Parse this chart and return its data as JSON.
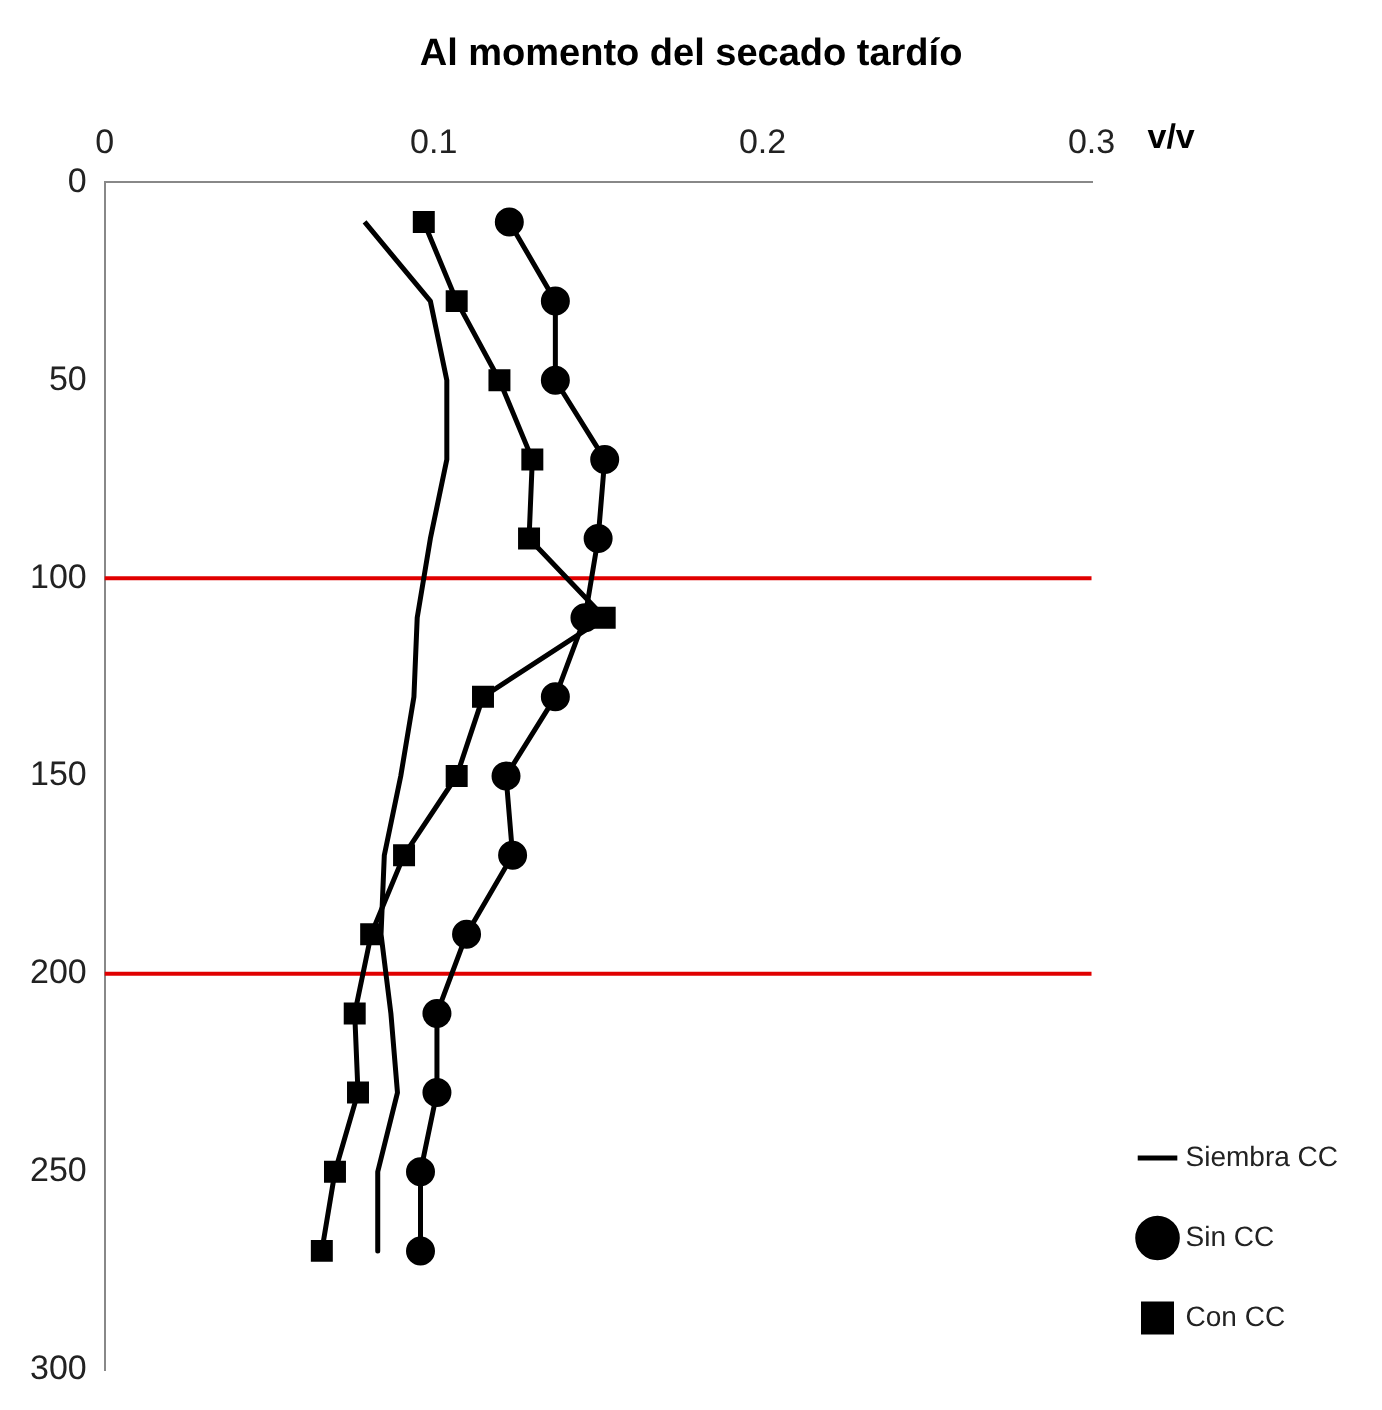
{
  "chart_data": {
    "type": "line",
    "title": "Al momento del secado tardío",
    "xlabel": "v/v",
    "xlim": [
      0,
      0.3
    ],
    "xticks": [
      0,
      0.1,
      0.2,
      0.3
    ],
    "ylim": [
      300,
      0
    ],
    "yticks": [
      0,
      50,
      100,
      150,
      200,
      250,
      300
    ],
    "grid": false,
    "legend": "bottom right",
    "line_style": "solid",
    "series": [
      {
        "name": "Siembra CC",
        "color": "#000000",
        "marker": "none",
        "x": [
          0.079,
          0.099,
          0.104,
          0.104,
          0.099,
          0.095,
          0.094,
          0.09,
          0.085,
          0.084,
          0.087,
          0.089,
          0.083,
          0.083
        ],
        "values": [
          10,
          30,
          50,
          70,
          90,
          110,
          130,
          150,
          170,
          190,
          210,
          230,
          250,
          270
        ]
      },
      {
        "name": "Sin CC",
        "color": "#000000",
        "marker": "circle",
        "x": [
          0.123,
          0.137,
          0.137,
          0.152,
          0.15,
          0.146,
          0.137,
          0.122,
          0.124,
          0.11,
          0.101,
          0.101,
          0.096,
          0.096
        ],
        "values": [
          10,
          30,
          50,
          70,
          90,
          110,
          130,
          150,
          170,
          190,
          210,
          230,
          250,
          270
        ]
      },
      {
        "name": "Con CC",
        "color": "#000000",
        "marker": "square",
        "x": [
          0.097,
          0.107,
          0.12,
          0.13,
          0.129,
          0.152,
          0.115,
          0.107,
          0.091,
          0.081,
          0.076,
          0.077,
          0.07,
          0.066
        ],
        "values": [
          10,
          30,
          50,
          70,
          90,
          110,
          130,
          150,
          170,
          190,
          210,
          230,
          250,
          270
        ]
      }
    ],
    "ref_lines": [
      {
        "axis": "y",
        "value": 100,
        "color": "#e00000"
      },
      {
        "axis": "y",
        "value": 200,
        "color": "#e00000"
      }
    ]
  }
}
